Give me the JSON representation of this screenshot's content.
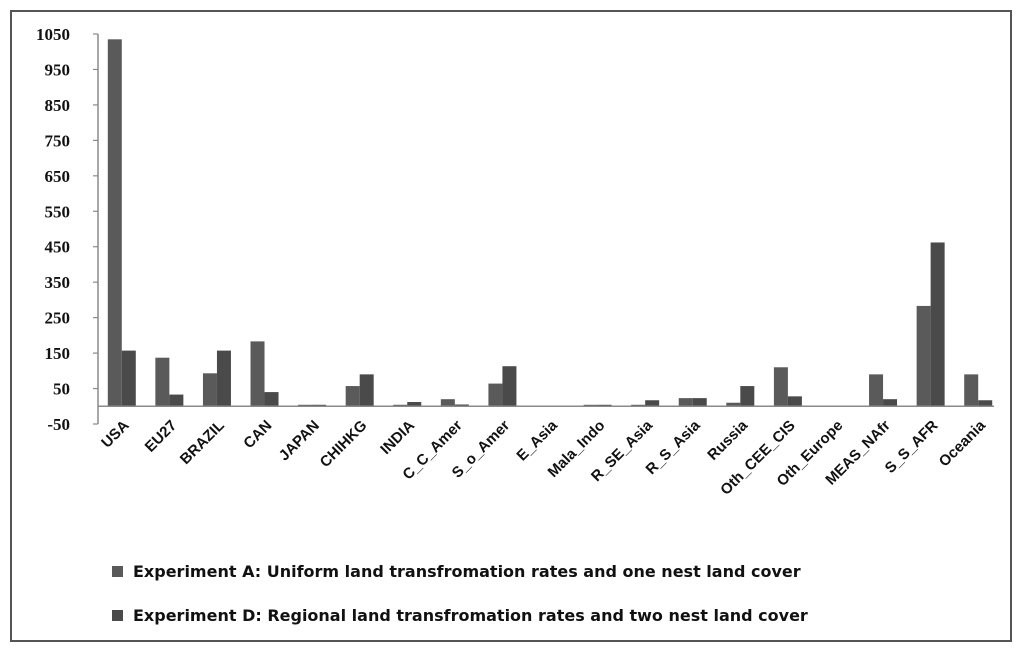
{
  "chart_data": {
    "type": "bar",
    "title": "",
    "xlabel": "",
    "ylabel": "",
    "ylim": [
      -50,
      1050
    ],
    "yticks": [
      -50,
      50,
      150,
      250,
      350,
      450,
      550,
      650,
      750,
      850,
      950,
      1050
    ],
    "grid": false,
    "legend_position": "bottom",
    "categories": [
      "USA",
      "EU27",
      "BRAZIL",
      "CAN",
      "JAPAN",
      "CHIHKG",
      "INDIA",
      "C_C_Amer",
      "S_o_Amer",
      "E_Asia",
      "Mala_Indo",
      "R_SE_Asia",
      "R_S_Asia",
      "Russia",
      "Oth_CEE_CIS",
      "Oth_Europe",
      "MEAS_NAfr",
      "S_S_AFR",
      "Oceania"
    ],
    "series": [
      {
        "name": "Experiment A: Uniform land transfromation rates and one nest land cover",
        "color": "#5a5a5a",
        "values": [
          1035,
          137,
          93,
          183,
          3,
          57,
          4,
          20,
          64,
          0,
          2,
          2,
          23,
          10,
          110,
          0,
          90,
          283,
          90
        ]
      },
      {
        "name": "Experiment D: Regional land transfromation rates and two nest land cover",
        "color": "#4a4a4a",
        "values": [
          157,
          33,
          157,
          40,
          3,
          90,
          12,
          5,
          113,
          0,
          2,
          17,
          23,
          57,
          28,
          0,
          20,
          462,
          17
        ]
      }
    ]
  }
}
